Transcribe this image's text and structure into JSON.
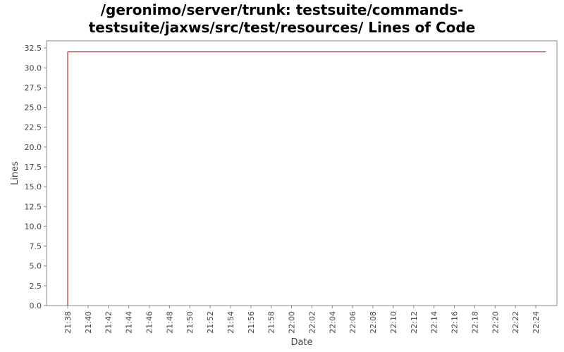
{
  "chart_data": {
    "type": "line",
    "title": "/geronimo/server/trunk: testsuite/commands-testsuite/jaxws/src/test/resources/ Lines of Code",
    "title_lines": [
      "/geronimo/server/trunk: testsuite/commands-",
      "testsuite/jaxws/src/test/resources/ Lines of Code"
    ],
    "xlabel": "Date",
    "ylabel": "Lines",
    "x_ticks": [
      "21:38",
      "21:40",
      "21:42",
      "21:44",
      "21:46",
      "21:48",
      "21:50",
      "21:52",
      "21:54",
      "21:56",
      "21:58",
      "22:00",
      "22:02",
      "22:04",
      "22:06",
      "22:08",
      "22:10",
      "22:12",
      "22:14",
      "22:16",
      "22:18",
      "22:20",
      "22:22",
      "22:24"
    ],
    "y_ticks": [
      "0.0",
      "2.5",
      "5.0",
      "7.5",
      "10.0",
      "12.5",
      "15.0",
      "17.5",
      "20.0",
      "22.5",
      "25.0",
      "27.5",
      "30.0",
      "32.5"
    ],
    "ylim": [
      0,
      33.4
    ],
    "grid": false,
    "series": [
      {
        "color": "#cc0000",
        "points": [
          {
            "x": "21:38",
            "y": 0
          },
          {
            "x": "21:38",
            "y": 32
          },
          {
            "x": "22:25",
            "y": 32
          }
        ]
      }
    ]
  }
}
